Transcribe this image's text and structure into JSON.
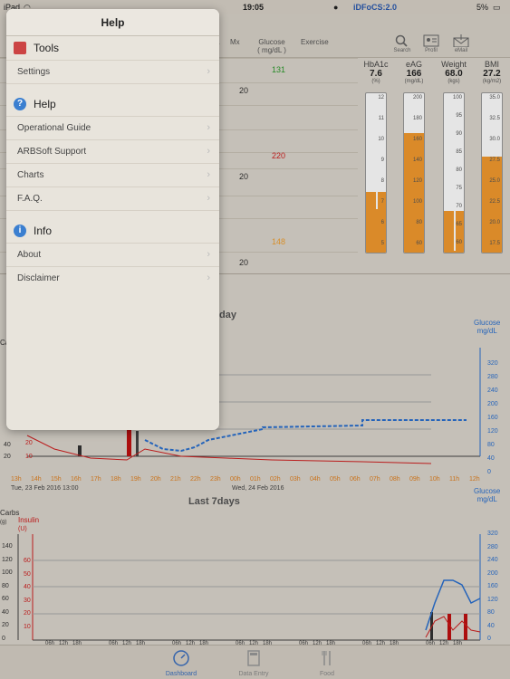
{
  "status": {
    "device": "iPad",
    "time": "19:05",
    "app_id": "iDFoCS:2.0",
    "battery": "5%"
  },
  "header": {
    "mx": "Mx",
    "glucose": "Glucose",
    "glucose_unit": "( mg/dL )",
    "exercise": "Exercise",
    "col_a": "a"
  },
  "tools": {
    "search": "Search",
    "profile": "Profil",
    "email": "eMail"
  },
  "log": {
    "glucose": [
      {
        "value": "131",
        "color": "#2b9a2b"
      },
      {
        "value": "220",
        "color": "#d02020"
      },
      {
        "value": "148",
        "color": "#f0a030"
      }
    ],
    "mx": [
      "20",
      "20",
      "20"
    ]
  },
  "gauges": [
    {
      "title": "HbA1c",
      "value": "7.6",
      "unit": "(%)",
      "ticks": [
        "12",
        "11",
        "10",
        "9",
        "8",
        "7",
        "6",
        "5"
      ],
      "fill": 0.38
    },
    {
      "title": "eAG",
      "value": "166",
      "unit": "(mg/dL)",
      "ticks": [
        "200",
        "180",
        "160",
        "140",
        "120",
        "100",
        "80",
        "60"
      ],
      "fill": 0.75
    },
    {
      "title": "Weight",
      "value": "68.0",
      "unit": "(kgs)",
      "ticks": [
        "100",
        "95",
        "90",
        "85",
        "80",
        "75",
        "70",
        "65",
        "60"
      ],
      "fill": 0.26
    },
    {
      "title": "BMI",
      "value": "27.2",
      "unit": "(kg/m2)",
      "ticks": [
        "35.0",
        "32.5",
        "30.0",
        "27.5",
        "25.0",
        "22.5",
        "20.0",
        "17.5"
      ],
      "fill": 0.6
    }
  ],
  "chart_day": {
    "title_suffix": "day",
    "right_label": "Glucose",
    "right_unit": "mg/dL",
    "left_label": "Carbs",
    "x_hours": [
      "13h",
      "14h",
      "15h",
      "16h",
      "17h",
      "18h",
      "19h",
      "20h",
      "21h",
      "22h",
      "23h",
      "00h",
      "01h",
      "02h",
      "03h",
      "04h",
      "05h",
      "06h",
      "07h",
      "08h",
      "09h",
      "10h",
      "11h",
      "12h"
    ],
    "date_left": "Tue, 23 Feb 2016 13:00",
    "date_mid": "Wed, 24 Feb 2016",
    "y_right": [
      "320",
      "280",
      "240",
      "200",
      "160",
      "120",
      "80",
      "40",
      "0"
    ],
    "y_left_visible": [
      "40",
      "20",
      "0"
    ],
    "insulin_ticks": [
      "20",
      "10"
    ]
  },
  "chart_week": {
    "title": "Last 7days",
    "left_label": "Carbs",
    "left_unit": "(g)",
    "insulin_label": "Insulin",
    "insulin_unit": "(U)",
    "right_label": "Glucose",
    "right_unit": "mg/dL",
    "carbs_ticks": [
      "140",
      "120",
      "100",
      "80",
      "60",
      "40",
      "20",
      "0"
    ],
    "insulin_ticks": [
      "60",
      "50",
      "40",
      "30",
      "20",
      "10"
    ],
    "y_right": [
      "320",
      "280",
      "240",
      "200",
      "160",
      "120",
      "80",
      "40",
      "0"
    ],
    "days": [
      "Tue, 16 Feb 2016",
      "Wed, 17 Feb 2016",
      "Thu, 18 Feb 2016",
      "Fri, 19 Feb 2016",
      "Sat, 20 Feb 2016",
      "Sun, 21 Feb 2016",
      "Mon, 22 Feb 2016"
    ],
    "hour_marks": [
      "06h",
      "12h",
      "18h"
    ]
  },
  "tabs": [
    {
      "label": "Dashboard",
      "active": true
    },
    {
      "label": "Data Entry",
      "active": false
    },
    {
      "label": "Food",
      "active": false
    }
  ],
  "popover": {
    "title": "Help",
    "sections": [
      {
        "label": "Tools",
        "icon": "tools-icon",
        "items": [
          "Settings"
        ]
      },
      {
        "label": "Help",
        "icon": "help-icon",
        "items": [
          "Operational Guide",
          "ARBSoft Support",
          "Charts",
          "F.A.Q."
        ]
      },
      {
        "label": "Info",
        "icon": "info-icon",
        "items": [
          "About",
          "Disclaimer"
        ]
      }
    ]
  }
}
